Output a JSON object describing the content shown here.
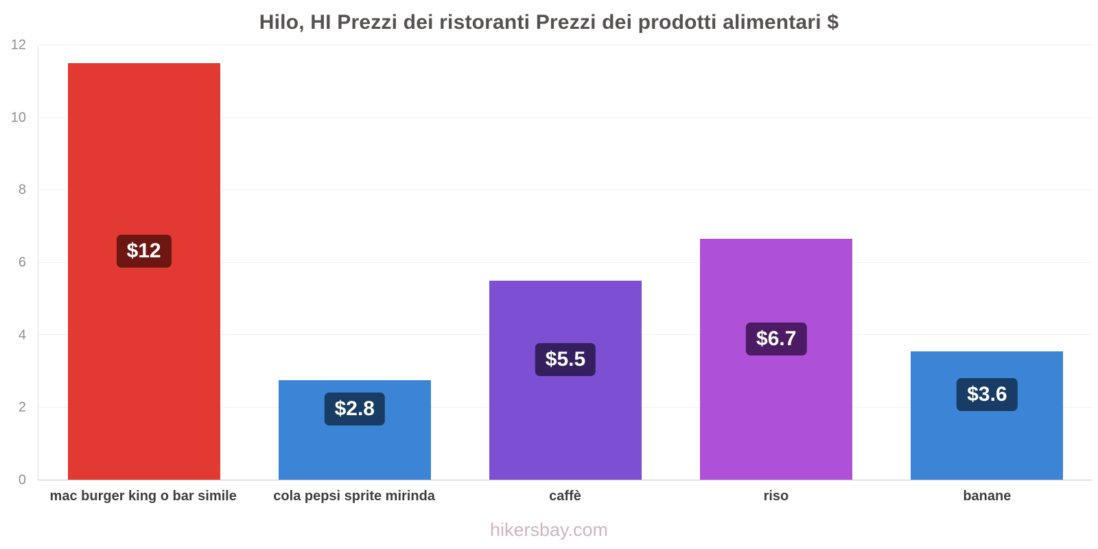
{
  "title": "Hilo, HI Prezzi dei ristoranti Prezzi dei prodotti alimentari $",
  "footer": "hikersbay.com",
  "chart_data": {
    "type": "bar",
    "title": "Hilo, HI Prezzi dei ristoranti Prezzi dei prodotti alimentari $",
    "xlabel": "",
    "ylabel": "",
    "ylim": [
      0,
      12
    ],
    "yticks": [
      0,
      2,
      4,
      6,
      8,
      10,
      12
    ],
    "grid": true,
    "categories": [
      "mac burger king o bar simile",
      "cola pepsi sprite mirinda",
      "caffè",
      "riso",
      "banane"
    ],
    "values": [
      11.5,
      2.75,
      5.5,
      6.65,
      3.55
    ],
    "value_labels": [
      "$12",
      "$2.8",
      "$5.5",
      "$6.7",
      "$3.6"
    ],
    "bar_colors": [
      "#e23933",
      "#3c85d6",
      "#7c4fd3",
      "#af51d8",
      "#3c85d6"
    ],
    "label_bg_colors": [
      "#6d1713",
      "#183c64",
      "#34205f",
      "#4c1b64",
      "#183c64"
    ]
  }
}
